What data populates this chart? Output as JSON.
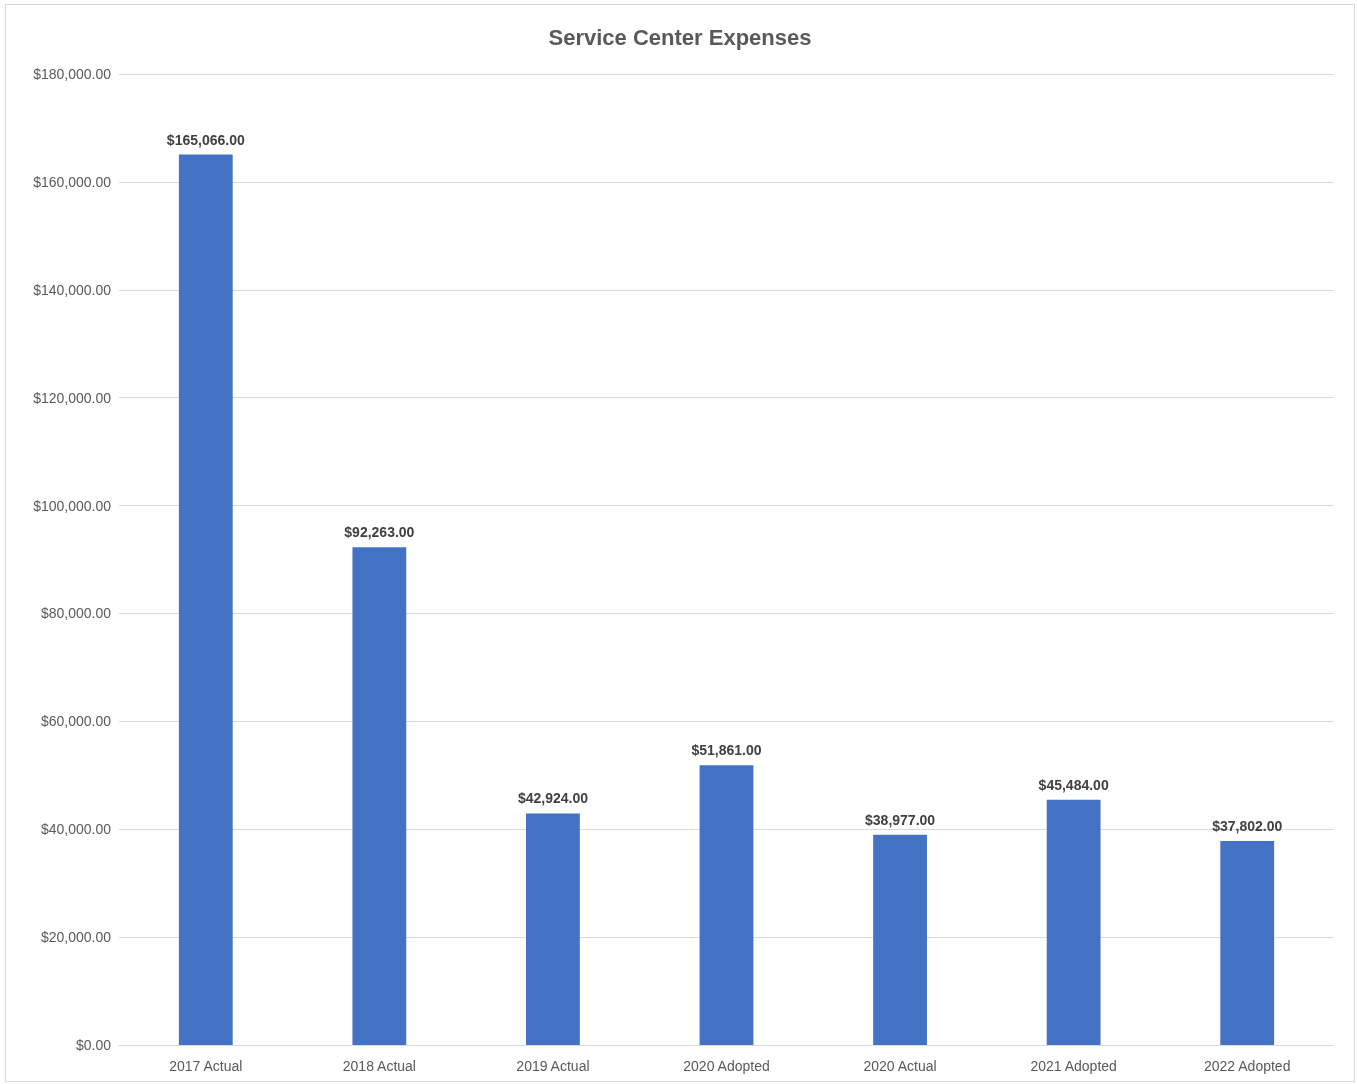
{
  "chart_data": {
    "type": "bar",
    "title": "Service Center Expenses",
    "categories": [
      "2017 Actual",
      "2018 Actual",
      "2019 Actual",
      "2020 Adopted",
      "2020 Actual",
      "2021 Adopted",
      "2022 Adopted"
    ],
    "values": [
      165066,
      92263,
      42924,
      51861,
      38977,
      45484,
      37802
    ],
    "value_labels": [
      "$165,066.00",
      "$92,263.00",
      "$42,924.00",
      "$51,861.00",
      "$38,977.00",
      "$45,484.00",
      "$37,802.00"
    ],
    "color": "#4472c4",
    "ylim": [
      0,
      180000
    ],
    "yticks": [
      {
        "value": 0,
        "label": "$0.00"
      },
      {
        "value": 20000,
        "label": "$20,000.00"
      },
      {
        "value": 40000,
        "label": "$40,000.00"
      },
      {
        "value": 60000,
        "label": "$60,000.00"
      },
      {
        "value": 80000,
        "label": "$80,000.00"
      },
      {
        "value": 100000,
        "label": "$100,000.00"
      },
      {
        "value": 120000,
        "label": "$120,000.00"
      },
      {
        "value": 140000,
        "label": "$140,000.00"
      },
      {
        "value": 160000,
        "label": "$160,000.00"
      },
      {
        "value": 180000,
        "label": "$180,000.00"
      }
    ],
    "grid": "y"
  }
}
